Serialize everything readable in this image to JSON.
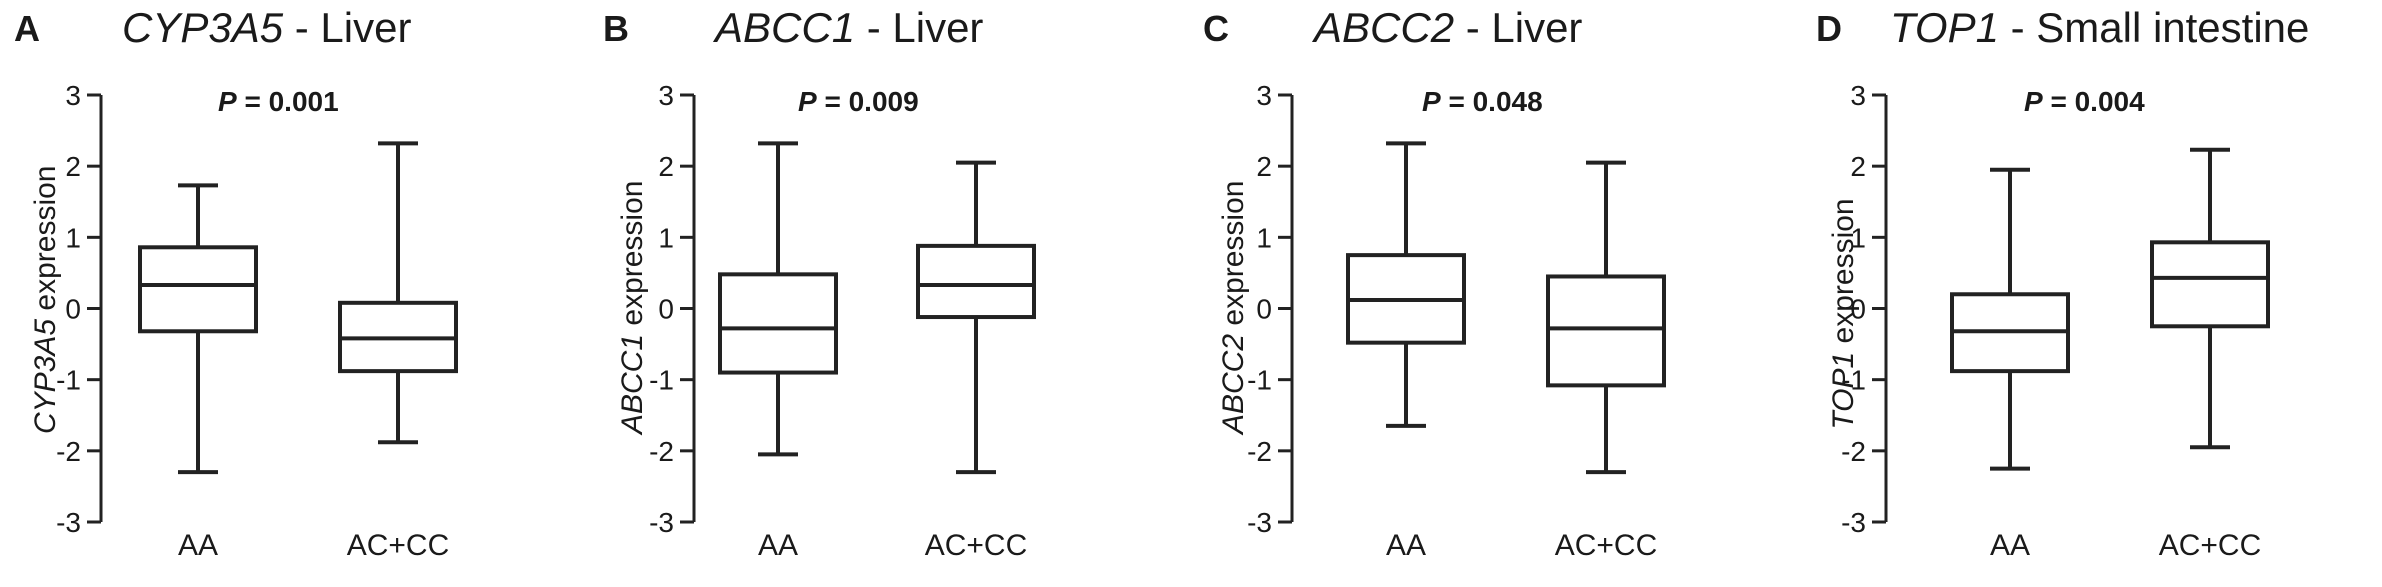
{
  "chart_data": [
    {
      "type": "box",
      "panel_letter": "A",
      "title_gene": "CYP3A5",
      "title_suffix": " - Liver",
      "p_label": "P",
      "p_value": " = 0.001",
      "ylabel_gene": "CYP3A5",
      "ylabel_suffix": " expression",
      "ylim": [
        -3,
        3
      ],
      "yticks": [
        "3",
        "2",
        "1",
        "0",
        "-1",
        "-2",
        "-3"
      ],
      "categories": [
        "AA",
        "AC+CC"
      ],
      "boxes": [
        {
          "min": -2.3,
          "q1": -0.32,
          "median": 0.33,
          "q3": 0.86,
          "max": 1.73
        },
        {
          "min": -1.88,
          "q1": -0.88,
          "median": -0.42,
          "q3": 0.08,
          "max": 2.32
        }
      ]
    },
    {
      "type": "box",
      "panel_letter": "B",
      "title_gene": "ABCC1",
      "title_suffix": " - Liver",
      "p_label": "P",
      "p_value": " = 0.009",
      "ylabel_gene": "ABCC1",
      "ylabel_suffix": " expression",
      "ylim": [
        -3,
        3
      ],
      "yticks": [
        "3",
        "2",
        "1",
        "0",
        "-1",
        "-2",
        "-3"
      ],
      "categories": [
        "AA",
        "AC+CC"
      ],
      "boxes": [
        {
          "min": -2.05,
          "q1": -0.9,
          "median": -0.28,
          "q3": 0.48,
          "max": 2.32
        },
        {
          "min": -2.3,
          "q1": -0.12,
          "median": 0.33,
          "q3": 0.88,
          "max": 2.05
        }
      ]
    },
    {
      "type": "box",
      "panel_letter": "C",
      "title_gene": "ABCC2",
      "title_suffix": " - Liver",
      "p_label": "P",
      "p_value": " = 0.048",
      "ylabel_gene": "ABCC2",
      "ylabel_suffix": " expression",
      "ylim": [
        -3,
        3
      ],
      "yticks": [
        "3",
        "2",
        "1",
        "0",
        "-1",
        "-2",
        "-3"
      ],
      "categories": [
        "AA",
        "AC+CC"
      ],
      "boxes": [
        {
          "min": -1.65,
          "q1": -0.48,
          "median": 0.12,
          "q3": 0.75,
          "max": 2.32
        },
        {
          "min": -2.3,
          "q1": -1.08,
          "median": -0.28,
          "q3": 0.45,
          "max": 2.05
        }
      ]
    },
    {
      "type": "box",
      "panel_letter": "D",
      "title_gene": "TOP1",
      "title_suffix": " - Small intestine",
      "p_label": "P",
      "p_value": " = 0.004",
      "ylabel_gene": "TOP1",
      "ylabel_suffix": " expression",
      "ylim": [
        -3,
        3
      ],
      "yticks": [
        "3",
        "2",
        "1",
        "0",
        "-1",
        "-2",
        "-3"
      ],
      "categories": [
        "AA",
        "AC+CC"
      ],
      "boxes": [
        {
          "min": -2.25,
          "q1": -0.88,
          "median": -0.32,
          "q3": 0.2,
          "max": 1.95
        },
        {
          "min": -1.95,
          "q1": -0.25,
          "median": 0.43,
          "q3": 0.93,
          "max": 2.23
        }
      ]
    }
  ]
}
